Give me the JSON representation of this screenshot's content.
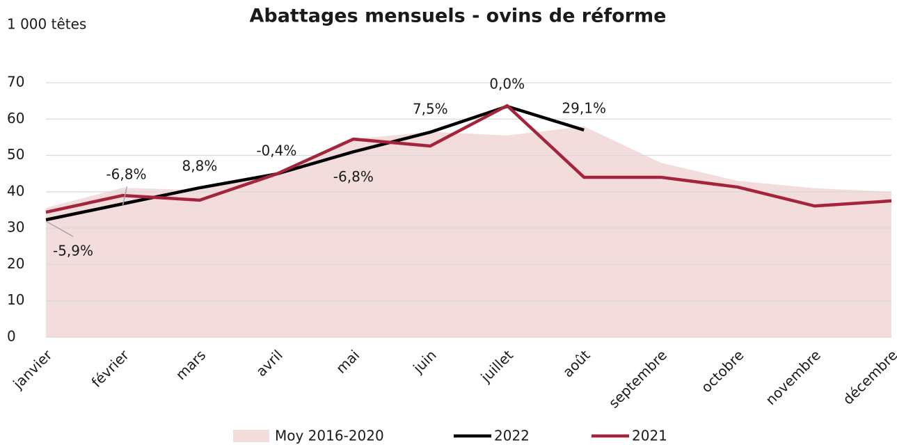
{
  "chart_data": {
    "type": "line",
    "title": "Abattages mensuels - ovins de réforme",
    "y_label": "1 000 têtes",
    "categories": [
      "janvier",
      "février",
      "mars",
      "avril",
      "mai",
      "juin",
      "juillet",
      "août",
      "septembre",
      "octobre",
      "novembre",
      "décembre"
    ],
    "series": [
      {
        "name": "Moy 2016-2020",
        "style": "area",
        "color": "#f2dcdc",
        "values": [
          35.6,
          41.1,
          40.5,
          45,
          54.5,
          56.5,
          55.5,
          58,
          48,
          43,
          41,
          40
        ]
      },
      {
        "name": "2022",
        "style": "line",
        "color": "#000000",
        "values": [
          32.3,
          36.7,
          41.1,
          44.9,
          51,
          56.4,
          63.5,
          57,
          null,
          null,
          null,
          null
        ]
      },
      {
        "name": "2021",
        "style": "line",
        "color": "#a3243b",
        "values": [
          34.4,
          39,
          37.7,
          44.9,
          54.5,
          52.6,
          63.7,
          44,
          44,
          41.3,
          36.1,
          37.5
        ]
      }
    ],
    "annotations": [
      "-5,9%",
      "-6,8%",
      "8,8%",
      "-0,4%",
      "-6,8%",
      "7,5%",
      "0,0%",
      "29,1%"
    ],
    "ylim": [
      0,
      70
    ],
    "yticks": [
      0,
      10,
      20,
      30,
      40,
      50,
      60,
      70
    ],
    "grid": true
  }
}
